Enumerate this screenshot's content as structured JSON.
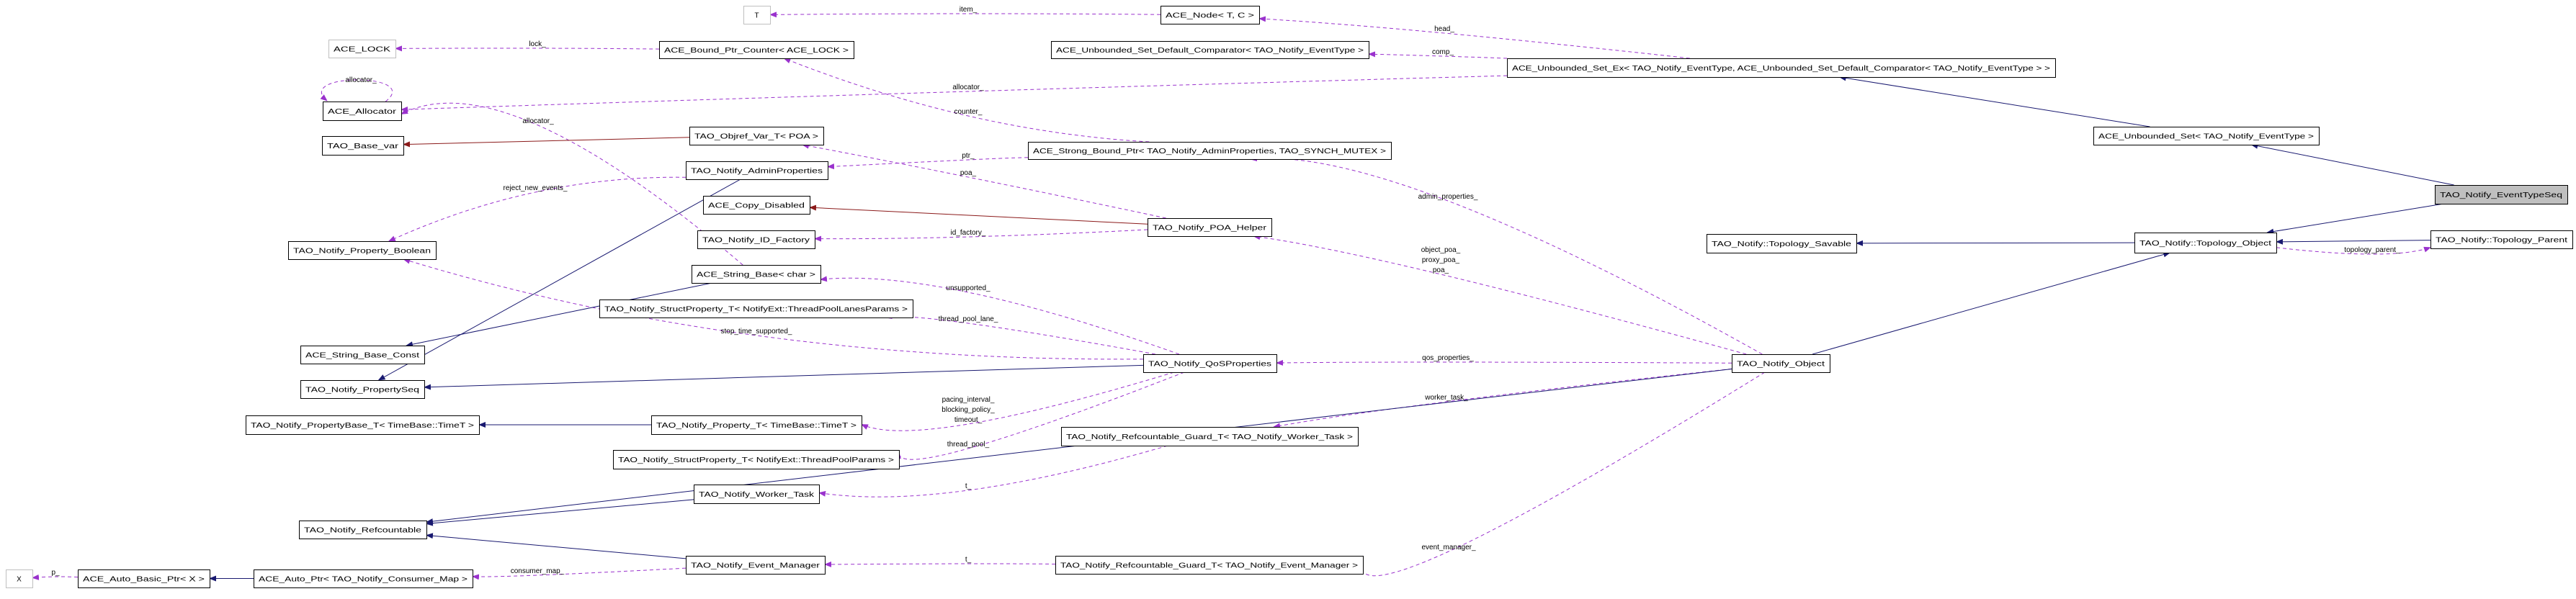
{
  "colors": {
    "public_inheritance": "#191970",
    "private_inheritance": "#8b1a1a",
    "usage": "#9a32cd",
    "root_fill": "#bfbfbf",
    "undocumented_border": "#bfbfbf",
    "class_border": "#000000"
  },
  "diagram": {
    "nodes": [
      {
        "id": "lock",
        "label": "ACE_LOCK",
        "kind": "undocumented"
      },
      {
        "id": "alloc",
        "label": "ACE_Allocator",
        "kind": "class"
      },
      {
        "id": "basevar",
        "label": "TAO_Base_var",
        "kind": "class"
      },
      {
        "id": "propbool",
        "label": "TAO_Notify_Property_Boolean",
        "kind": "class"
      },
      {
        "id": "strconst",
        "label": "ACE_String_Base_Const",
        "kind": "class"
      },
      {
        "id": "propseq",
        "label": "TAO_Notify_PropertySeq",
        "kind": "class"
      },
      {
        "id": "propbase",
        "label": "TAO_Notify_PropertyBase_T< TimeBase::TimeT >",
        "kind": "class"
      },
      {
        "id": "refc",
        "label": "TAO_Notify_Refcountable",
        "kind": "class"
      },
      {
        "id": "x",
        "label": "X",
        "kind": "undocumented"
      },
      {
        "id": "autobasic",
        "label": "ACE_Auto_Basic_Ptr< X >",
        "kind": "class"
      },
      {
        "id": "autoptr",
        "label": "ACE_Auto_Ptr< TAO_Notify_Consumer_Map >",
        "kind": "class"
      },
      {
        "id": "boundctr",
        "label": "ACE_Bound_Ptr_Counter< ACE_LOCK >",
        "kind": "class"
      },
      {
        "id": "objref",
        "label": "TAO_Objref_Var_T< POA >",
        "kind": "class"
      },
      {
        "id": "adminprops",
        "label": "TAO_Notify_AdminProperties",
        "kind": "class"
      },
      {
        "id": "copydis",
        "label": "ACE_Copy_Disabled",
        "kind": "class"
      },
      {
        "id": "idfactory",
        "label": "TAO_Notify_ID_Factory",
        "kind": "class"
      },
      {
        "id": "strbase",
        "label": "ACE_String_Base< char >",
        "kind": "class"
      },
      {
        "id": "lanes",
        "label": "TAO_Notify_StructProperty_T< NotifyExt::ThreadPoolLanesParams >",
        "kind": "class"
      },
      {
        "id": "propT",
        "label": "TAO_Notify_Property_T< TimeBase::TimeT >",
        "kind": "class"
      },
      {
        "id": "poolparams",
        "label": "TAO_Notify_StructProperty_T< NotifyExt::ThreadPoolParams >",
        "kind": "class"
      },
      {
        "id": "worker",
        "label": "TAO_Notify_Worker_Task",
        "kind": "class"
      },
      {
        "id": "eventmgr",
        "label": "TAO_Notify_Event_Manager",
        "kind": "class"
      },
      {
        "id": "T",
        "label": "T",
        "kind": "undocumented"
      },
      {
        "id": "node",
        "label": "ACE_Node< T, C >",
        "kind": "class"
      },
      {
        "id": "comparator",
        "label": "ACE_Unbounded_Set_Default_Comparator< TAO_Notify_EventType >",
        "kind": "class"
      },
      {
        "id": "strongptr",
        "label": "ACE_Strong_Bound_Ptr< TAO_Notify_AdminProperties, TAO_SYNCH_MUTEX >",
        "kind": "class"
      },
      {
        "id": "poahelper",
        "label": "TAO_Notify_POA_Helper",
        "kind": "class"
      },
      {
        "id": "qos",
        "label": "TAO_Notify_QoSProperties",
        "kind": "class"
      },
      {
        "id": "guardworker",
        "label": "TAO_Notify_Refcountable_Guard_T< TAO_Notify_Worker_Task >",
        "kind": "class"
      },
      {
        "id": "guardevt",
        "label": "TAO_Notify_Refcountable_Guard_T< TAO_Notify_Event_Manager >",
        "kind": "class"
      },
      {
        "id": "setex",
        "label": "ACE_Unbounded_Set_Ex< TAO_Notify_EventType, ACE_Unbounded_Set_Default_Comparator< TAO_Notify_EventType > >",
        "kind": "class"
      },
      {
        "id": "savable",
        "label": "TAO_Notify::Topology_Savable",
        "kind": "class"
      },
      {
        "id": "uset",
        "label": "ACE_Unbounded_Set< TAO_Notify_EventType >",
        "kind": "class"
      },
      {
        "id": "topobj",
        "label": "TAO_Notify::Topology_Object",
        "kind": "class"
      },
      {
        "id": "topparent",
        "label": "TAO_Notify::Topology_Parent",
        "kind": "class"
      },
      {
        "id": "eventseq",
        "label": "TAO_Notify_EventTypeSeq",
        "kind": "root"
      },
      {
        "id": "notifyobj",
        "label": "TAO_Notify_Object",
        "kind": "class"
      }
    ],
    "edges": [
      {
        "from": "boundctr",
        "to": "lock",
        "relation": "usage",
        "label": [
          "lock_"
        ]
      },
      {
        "from": "alloc",
        "to": "alloc",
        "relation": "usage",
        "label": [
          "allocator_"
        ]
      },
      {
        "from": "setex",
        "to": "alloc",
        "relation": "usage",
        "label": [
          "allocator_"
        ]
      },
      {
        "from": "strbase",
        "to": "alloc",
        "relation": "usage",
        "label": [
          "allocator_"
        ]
      },
      {
        "from": "adminprops",
        "to": "propbool",
        "relation": "usage",
        "label": [
          "reject_new_events_"
        ]
      },
      {
        "from": "qos",
        "to": "propbool",
        "relation": "usage",
        "label": [
          "stop_time_supported_"
        ]
      },
      {
        "from": "node",
        "to": "T",
        "relation": "usage",
        "label": [
          "item_"
        ]
      },
      {
        "from": "setex",
        "to": "node",
        "relation": "usage",
        "label": [
          "head_"
        ]
      },
      {
        "from": "setex",
        "to": "comparator",
        "relation": "usage",
        "label": [
          "comp_"
        ]
      },
      {
        "from": "strongptr",
        "to": "boundctr",
        "relation": "usage",
        "label": [
          "counter_"
        ]
      },
      {
        "from": "strongptr",
        "to": "adminprops",
        "relation": "usage",
        "label": [
          "ptr_"
        ]
      },
      {
        "from": "poahelper",
        "to": "objref",
        "relation": "usage",
        "label": [
          "poa_"
        ]
      },
      {
        "from": "poahelper",
        "to": "idfactory",
        "relation": "usage",
        "label": [
          "id_factory_"
        ]
      },
      {
        "from": "qos",
        "to": "strbase",
        "relation": "usage",
        "label": [
          "unsupported_"
        ]
      },
      {
        "from": "qos",
        "to": "lanes",
        "relation": "usage",
        "label": [
          "thread_pool_lane_"
        ]
      },
      {
        "from": "qos",
        "to": "propT",
        "relation": "usage",
        "label": [
          "pacing_interval_",
          "blocking_policy_",
          "timeout_"
        ]
      },
      {
        "from": "qos",
        "to": "poolparams",
        "relation": "usage",
        "label": [
          "thread_pool_"
        ]
      },
      {
        "from": "guardworker",
        "to": "worker",
        "relation": "usage",
        "label": [
          "t_"
        ]
      },
      {
        "from": "guardevt",
        "to": "eventmgr",
        "relation": "usage",
        "label": [
          "t_"
        ]
      },
      {
        "from": "eventmgr",
        "to": "autoptr",
        "relation": "usage",
        "label": [
          "consumer_map_"
        ]
      },
      {
        "from": "autobasic",
        "to": "x",
        "relation": "usage",
        "label": [
          "p_"
        ]
      },
      {
        "from": "notifyobj",
        "to": "strongptr",
        "relation": "usage",
        "label": [
          "admin_properties_"
        ]
      },
      {
        "from": "notifyobj",
        "to": "poahelper",
        "relation": "usage",
        "label": [
          "object_poa_",
          "proxy_poa_",
          "poa_"
        ]
      },
      {
        "from": "notifyobj",
        "to": "qos",
        "relation": "usage",
        "label": [
          "qos_properties_"
        ]
      },
      {
        "from": "notifyobj",
        "to": "guardworker",
        "relation": "usage",
        "label": [
          "worker_task_"
        ]
      },
      {
        "from": "notifyobj",
        "to": "guardevt",
        "relation": "usage",
        "label": [
          "event_manager_"
        ]
      },
      {
        "from": "topobj",
        "to": "topparent",
        "relation": "usage",
        "label": [
          "topology_parent_"
        ]
      },
      {
        "from": "uset",
        "to": "setex",
        "relation": "public-inheritance",
        "label": []
      },
      {
        "from": "eventseq",
        "to": "uset",
        "relation": "public-inheritance",
        "label": []
      },
      {
        "from": "eventseq",
        "to": "topobj",
        "relation": "public-inheritance",
        "label": []
      },
      {
        "from": "topparent",
        "to": "topobj",
        "relation": "public-inheritance",
        "label": []
      },
      {
        "from": "topobj",
        "to": "savable",
        "relation": "public-inheritance",
        "label": []
      },
      {
        "from": "notifyobj",
        "to": "topobj",
        "relation": "public-inheritance",
        "label": []
      },
      {
        "from": "notifyobj",
        "to": "refc",
        "relation": "public-inheritance",
        "label": []
      },
      {
        "from": "adminprops",
        "to": "propseq",
        "relation": "public-inheritance",
        "label": []
      },
      {
        "from": "qos",
        "to": "propseq",
        "relation": "public-inheritance",
        "label": []
      },
      {
        "from": "strbase",
        "to": "strconst",
        "relation": "public-inheritance",
        "label": []
      },
      {
        "from": "propT",
        "to": "propbase",
        "relation": "public-inheritance",
        "label": []
      },
      {
        "from": "worker",
        "to": "refc",
        "relation": "public-inheritance",
        "label": []
      },
      {
        "from": "eventmgr",
        "to": "refc",
        "relation": "public-inheritance",
        "label": []
      },
      {
        "from": "autoptr",
        "to": "autobasic",
        "relation": "public-inheritance",
        "label": []
      },
      {
        "from": "objref",
        "to": "basevar",
        "relation": "private-inheritance",
        "label": []
      },
      {
        "from": "poahelper",
        "to": "copydis",
        "relation": "private-inheritance",
        "label": []
      }
    ]
  }
}
